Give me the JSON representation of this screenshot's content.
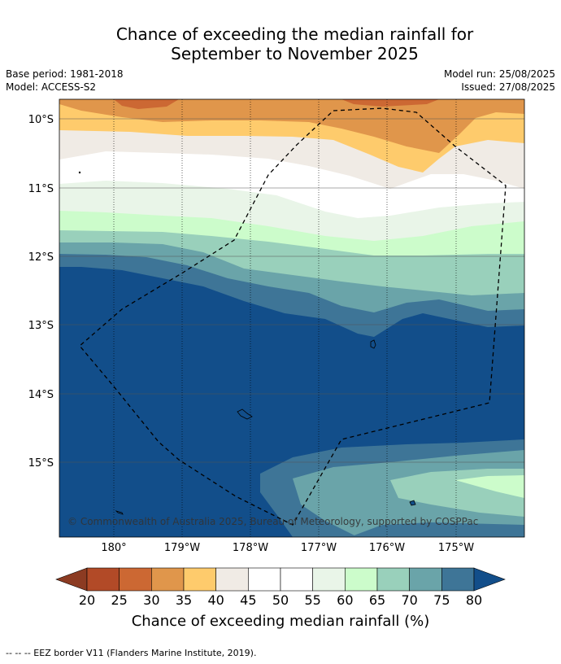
{
  "title_line1": "Chance of exceeding the median rainfall for",
  "title_line2": "September to November 2025",
  "meta": {
    "base_period": "Base period: 1981-2018",
    "model": "Model: ACCESS-S2",
    "model_run": "Model run: 25/08/2025",
    "issued": "Issued: 27/08/2025"
  },
  "map": {
    "lat_labels": [
      "10°S",
      "11°S",
      "12°S",
      "13°S",
      "14°S",
      "15°S"
    ],
    "lon_labels": [
      "180°",
      "179°W",
      "178°W",
      "177°W",
      "176°W",
      "175°W"
    ],
    "copyright": "© Commonwealth of Australia 2025, Bureau of Meteorology, supported by COSPPac"
  },
  "colorbar": {
    "labels": [
      "20",
      "25",
      "30",
      "35",
      "40",
      "45",
      "50",
      "55",
      "60",
      "65",
      "70",
      "75",
      "80"
    ],
    "colors": [
      "#8c3b22",
      "#b24a27",
      "#cc6833",
      "#e0964b",
      "#fecb6c",
      "#f0ebe5",
      "#ffffff",
      "#ffffff",
      "#e9f5e8",
      "#ccfccb",
      "#99d0bb",
      "#6aa4a9",
      "#3e7597",
      "#124e8a"
    ],
    "title": "Chance of exceeding median rainfall (%)"
  },
  "footer": "--  --  -- EEZ border V11 (Flanders Marine Institute, 2019)."
}
